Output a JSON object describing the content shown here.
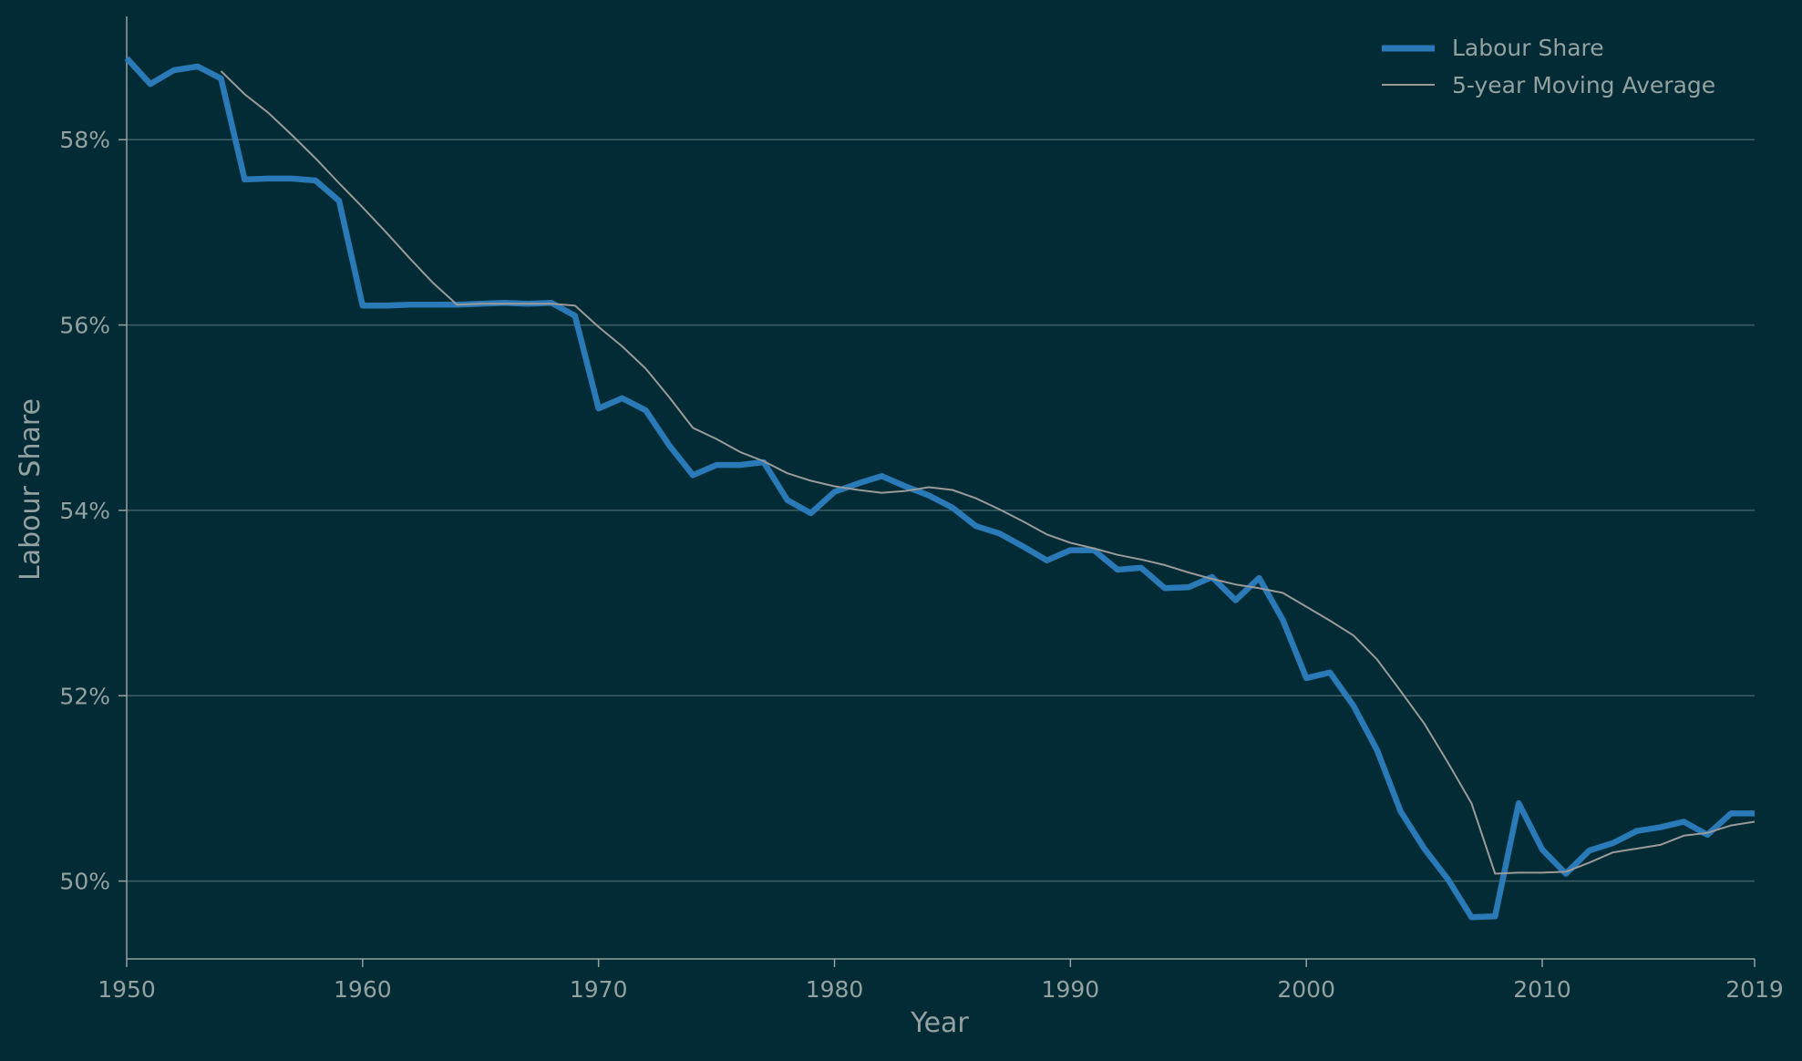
{
  "chart_data": {
    "type": "line",
    "title": "",
    "xlabel": "Year",
    "ylabel": "Labour Share",
    "xlim": [
      1950,
      2019
    ],
    "ylim": [
      0.4916,
      0.5933
    ],
    "x_ticks": [
      1950,
      1960,
      1970,
      1980,
      1990,
      2000,
      2010,
      2019
    ],
    "y_ticks": [
      0.5,
      0.52,
      0.54,
      0.56,
      0.58
    ],
    "y_tick_labels": [
      "50%",
      "52%",
      "54%",
      "56%",
      "58%"
    ],
    "grid": "horizontal",
    "legend_position": "top-right",
    "colors": {
      "background": "#022b36",
      "labour_share": "#2a7ab8",
      "moving_average": "#9a9a9a",
      "grid": "#3e5f66",
      "axis": "#93a1a1",
      "text": "#93a1a1"
    },
    "x": [
      1950,
      1951,
      1952,
      1953,
      1954,
      1955,
      1956,
      1957,
      1958,
      1959,
      1960,
      1961,
      1962,
      1963,
      1964,
      1965,
      1966,
      1967,
      1968,
      1969,
      1970,
      1971,
      1972,
      1973,
      1974,
      1975,
      1976,
      1977,
      1978,
      1979,
      1980,
      1981,
      1982,
      1983,
      1984,
      1985,
      1986,
      1987,
      1988,
      1989,
      1990,
      1991,
      1992,
      1993,
      1994,
      1995,
      1996,
      1997,
      1998,
      1999,
      2000,
      2001,
      2002,
      2003,
      2004,
      2005,
      2006,
      2007,
      2008,
      2009,
      2010,
      2011,
      2012,
      2013,
      2014,
      2015,
      2016,
      2017,
      2018,
      2019
    ],
    "series": [
      {
        "name": "Labour Share",
        "values": [
          0.5888,
          0.586,
          0.5875,
          0.5879,
          0.5866,
          0.5757,
          0.5758,
          0.5758,
          0.5756,
          0.5734,
          0.5621,
          0.5621,
          0.5622,
          0.5622,
          0.5622,
          0.5623,
          0.5624,
          0.5623,
          0.5624,
          0.561,
          0.551,
          0.5521,
          0.5508,
          0.547,
          0.5438,
          0.5449,
          0.5449,
          0.5452,
          0.5411,
          0.5397,
          0.542,
          0.5429,
          0.5437,
          0.5426,
          0.5416,
          0.5403,
          0.5383,
          0.5375,
          0.5361,
          0.5346,
          0.5357,
          0.5357,
          0.5336,
          0.5338,
          0.5316,
          0.5317,
          0.5328,
          0.5303,
          0.5327,
          0.5282,
          0.5219,
          0.5225,
          0.5189,
          0.5141,
          0.5075,
          0.5035,
          0.5002,
          0.4961,
          0.4962,
          0.5084,
          0.5034,
          0.5008,
          0.5033,
          0.5041,
          0.5054,
          0.5058,
          0.5064,
          0.505,
          0.5073,
          0.5073
        ]
      },
      {
        "name": "5-year Moving Average",
        "values": [
          null,
          null,
          null,
          null,
          0.5874,
          0.5849,
          0.5829,
          0.5805,
          0.578,
          0.5753,
          0.5727,
          0.57,
          0.5672,
          0.5645,
          0.5622,
          0.5623,
          0.5623,
          0.5623,
          0.5623,
          0.5621,
          0.5598,
          0.5577,
          0.5553,
          0.5522,
          0.5489,
          0.5477,
          0.5463,
          0.5453,
          0.544,
          0.5432,
          0.5426,
          0.5422,
          0.5419,
          0.5421,
          0.5425,
          0.5422,
          0.5413,
          0.5401,
          0.5388,
          0.5374,
          0.5365,
          0.5359,
          0.5352,
          0.5347,
          0.5341,
          0.5333,
          0.5326,
          0.532,
          0.5316,
          0.5311,
          0.5296,
          0.5281,
          0.5265,
          0.5239,
          0.5205,
          0.517,
          0.5128,
          0.5084,
          0.5008,
          0.5009,
          0.5009,
          0.501,
          0.502,
          0.5031,
          0.5035,
          0.5039,
          0.5049,
          0.5052,
          0.506,
          0.5064
        ]
      }
    ]
  }
}
